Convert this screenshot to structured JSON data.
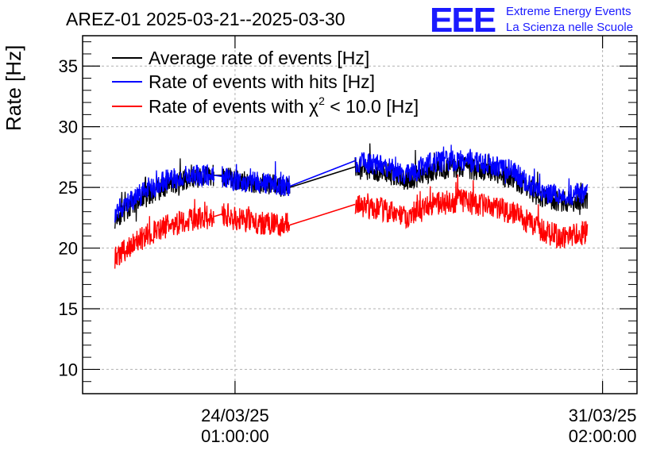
{
  "header": {
    "title": "AREZ-01 2025-03-21--2025-03-30",
    "logo": "EEE",
    "org_line1": "Extreme Energy Events",
    "org_line2": "La Scienza nelle Scuole"
  },
  "chart_data": {
    "type": "line",
    "ylabel": "Rate [Hz]",
    "xlabel": "",
    "ylim": [
      8,
      37.5
    ],
    "xlim": [
      -2.92,
      7.7
    ],
    "grid": true,
    "legend_position": "top-left",
    "y_ticks": [
      10,
      15,
      20,
      25,
      30,
      35
    ],
    "x_ticks": [
      {
        "value": 0,
        "date": "24/03/25",
        "time": "01:00:00"
      },
      {
        "value": 7.04,
        "date": "31/03/25",
        "time": "02:00:00"
      }
    ],
    "x_unit_note": "days",
    "colors": {
      "average": "#000000",
      "hits": "#0000ff",
      "chi2": "#ff0000"
    },
    "series": [
      {
        "key": "average",
        "name": "Average rate of events [Hz]",
        "color": "#000000",
        "x": [
          -2.3,
          -1.8,
          -1.3,
          -0.8,
          -0.4,
          -0.25,
          0.0,
          0.5,
          1.05,
          2.3,
          2.8,
          3.3,
          3.8,
          4.3,
          4.8,
          5.3,
          5.8,
          6.3,
          6.75
        ],
        "y": [
          22.5,
          24.0,
          25.2,
          25.8,
          26.0,
          26.0,
          25.6,
          25.3,
          25.0,
          26.7,
          26.3,
          25.6,
          26.4,
          26.7,
          26.3,
          25.8,
          24.3,
          23.8,
          24.0
        ]
      },
      {
        "key": "hits",
        "name": "Rate of events with hits [Hz]",
        "color": "#0000ff",
        "x": [
          -2.3,
          -1.8,
          -1.3,
          -0.8,
          -0.4,
          -0.25,
          0.0,
          0.5,
          1.05,
          2.3,
          2.8,
          3.3,
          3.8,
          4.3,
          4.8,
          5.3,
          5.8,
          6.3,
          6.75
        ],
        "y": [
          23.0,
          24.5,
          25.6,
          26.0,
          26.0,
          25.9,
          25.6,
          25.4,
          25.1,
          27.2,
          26.8,
          26.0,
          27.1,
          27.2,
          27.0,
          26.4,
          24.8,
          24.3,
          24.6
        ]
      },
      {
        "key": "chi2",
        "name_prefix": "Rate of events with ",
        "name_symbol": "χ",
        "name_sup": "2",
        "name_suffix": " < 10.0 [Hz]",
        "color": "#ff0000",
        "x": [
          -2.3,
          -1.8,
          -1.3,
          -0.8,
          -0.4,
          -0.25,
          0.0,
          0.5,
          1.05,
          2.3,
          2.8,
          3.3,
          3.8,
          4.3,
          4.8,
          5.3,
          5.8,
          6.3,
          6.75
        ],
        "y": [
          19.3,
          20.8,
          21.8,
          22.4,
          22.6,
          22.8,
          22.4,
          22.1,
          21.9,
          23.6,
          23.2,
          22.6,
          23.6,
          23.9,
          23.5,
          23.0,
          21.6,
          20.8,
          21.3
        ]
      }
    ],
    "segments": [
      [
        -2.3,
        -0.4
      ],
      [
        -0.25,
        1.05
      ],
      [
        2.3,
        6.75
      ]
    ]
  }
}
